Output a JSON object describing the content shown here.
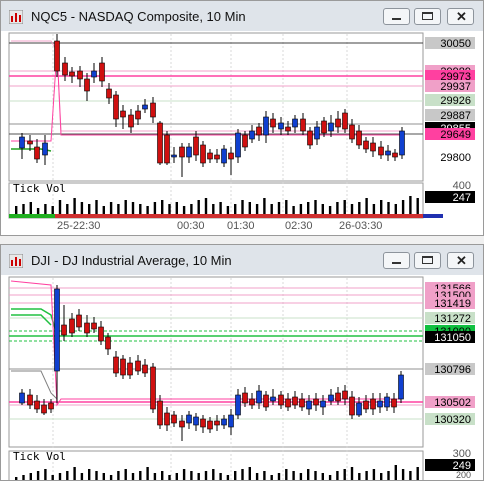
{
  "windows": [
    {
      "title": "NQC5 - NASDAQ Composite, 10 Min",
      "x_ticks": [
        "25-22:30",
        "00:30",
        "01:30",
        "02:30",
        "26-03:30"
      ],
      "price_labels": [
        {
          "text": "30050",
          "bg": "#c8c8c8",
          "fg": "#000000"
        },
        {
          "text": "29989",
          "bg": "#f0a0c8",
          "fg": "#000000"
        },
        {
          "text": "29973",
          "bg": "#ff40a0",
          "fg": "#000000"
        },
        {
          "text": "29937",
          "bg": "#f0a0c8",
          "fg": "#000000"
        },
        {
          "text": "29926",
          "bg": "#c8e0c8",
          "fg": "#000000"
        },
        {
          "text": "29887",
          "bg": "#c8c8c8",
          "fg": "#000000"
        },
        {
          "text": "29855",
          "bg": "#000000",
          "fg": "#ffffff"
        },
        {
          "text": "29649",
          "bg": "#ff40a0",
          "fg": "#000000"
        },
        {
          "text": "29800",
          "bg": "#ffffff",
          "fg": "#000000"
        }
      ],
      "volume": {
        "label": "Tick Vol",
        "top_label": "400",
        "value_label": "247"
      }
    },
    {
      "title": "DJI - DJ Industrial Average, 10 Min",
      "x_ticks": [
        "25-22:30",
        "00:30",
        "01:30",
        "02:30",
        "26-03:30"
      ],
      "price_labels": [
        {
          "text": "131566",
          "bg": "#f0a0c8",
          "fg": "#000000"
        },
        {
          "text": "131500",
          "bg": "#f0a0c8",
          "fg": "#000000"
        },
        {
          "text": "131419",
          "bg": "#f0a0c8",
          "fg": "#000000"
        },
        {
          "text": "131272",
          "bg": "#c8e0c8",
          "fg": "#000000"
        },
        {
          "text": "131090",
          "bg": "#10c040",
          "fg": "#000000"
        },
        {
          "text": "131050",
          "bg": "#000000",
          "fg": "#ffffff"
        },
        {
          "text": "130796",
          "bg": "#c8c8c8",
          "fg": "#000000"
        },
        {
          "text": "130502",
          "bg": "#f0a0c8",
          "fg": "#000000"
        },
        {
          "text": "130320",
          "bg": "#c8e0c8",
          "fg": "#000000"
        }
      ],
      "volume": {
        "label": "Tick Vol",
        "top_label": "300",
        "value_label": "249",
        "bottom_label": "200"
      }
    }
  ]
}
